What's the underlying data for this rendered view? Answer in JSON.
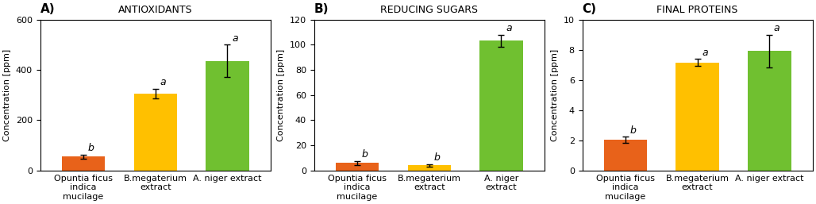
{
  "chart_data": [
    {
      "type": "bar",
      "panel_label": "A)",
      "title": "ANTIOXIDANTS",
      "ylabel": "Concentration [ppm]",
      "categories": [
        "Opuntia ficus\nindica\nmucilage",
        "B.megaterium\nextract",
        "A. niger extract"
      ],
      "values": [
        55,
        305,
        435
      ],
      "errors": [
        8,
        20,
        65
      ],
      "significance": [
        "b",
        "a",
        "a"
      ],
      "colors": [
        "#E8621A",
        "#FFC000",
        "#70C030"
      ],
      "ylim": [
        0,
        600
      ],
      "yticks": [
        0,
        200,
        400,
        600
      ],
      "grid": false
    },
    {
      "type": "bar",
      "panel_label": "B)",
      "title": "REDUCING SUGARS",
      "ylabel": "Concentration [ppm]",
      "categories": [
        "Opuntia ficus\nindica\nmucilage",
        "B.megaterium\nextract",
        "A. niger\nextract"
      ],
      "values": [
        6,
        4,
        103
      ],
      "errors": [
        1.5,
        1.0,
        5
      ],
      "significance": [
        "b",
        "b",
        "a"
      ],
      "colors": [
        "#E8621A",
        "#FFC000",
        "#70C030"
      ],
      "ylim": [
        0,
        120
      ],
      "yticks": [
        0,
        20,
        40,
        60,
        80,
        100,
        120
      ],
      "grid": false
    },
    {
      "type": "bar",
      "panel_label": "C)",
      "title": "FINAL PROTEINS",
      "ylabel": "Concentration [ppm]",
      "categories": [
        "Opuntia ficus\nindica\nmucilage",
        "B.megaterium\nextract",
        "A. niger extract"
      ],
      "values": [
        2.05,
        7.15,
        7.9
      ],
      "errors": [
        0.2,
        0.25,
        1.1
      ],
      "significance": [
        "b",
        "a",
        "a"
      ],
      "colors": [
        "#E8621A",
        "#FFC000",
        "#70C030"
      ],
      "ylim": [
        0,
        10
      ],
      "yticks": [
        0,
        2,
        4,
        6,
        8,
        10
      ],
      "grid": false
    }
  ]
}
